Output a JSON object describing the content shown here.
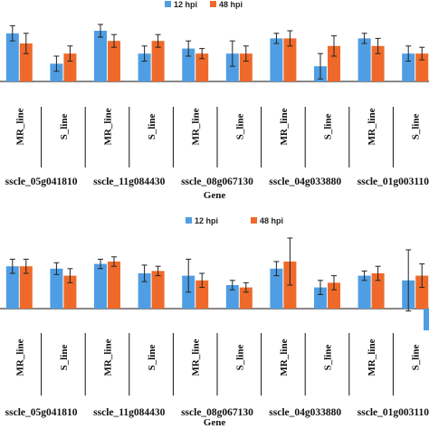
{
  "colors": {
    "s12": "#4f9ee3",
    "s48": "#ef6a2a",
    "axis": "#111111",
    "err": "#222222"
  },
  "chart_data": [
    {
      "type": "bar",
      "xlabel": "Gene",
      "legend": [
        "12 hpi",
        "48 hpi"
      ],
      "genes": [
        "sscle_05g041810",
        "sscle_11g084430",
        "sscle_08g067130",
        "sscle_04g033880",
        "sscle_01g003110"
      ],
      "lines": [
        "MR_line",
        "S_line"
      ],
      "categories": [
        "MR_line",
        "S_line",
        "MR_line",
        "S_line",
        "MR_line",
        "S_line",
        "MR_line",
        "S_line",
        "MR_line",
        "S_line"
      ],
      "series": [
        {
          "name": "12 hpi",
          "values": [
            1.9,
            0.7,
            2.0,
            1.1,
            1.3,
            1.1,
            1.7,
            0.6,
            1.7,
            1.1
          ],
          "errors": [
            0.3,
            0.3,
            0.25,
            0.3,
            0.3,
            0.5,
            0.2,
            0.5,
            0.2,
            0.3
          ]
        },
        {
          "name": "48 hpi",
          "values": [
            1.5,
            1.1,
            1.6,
            1.6,
            1.1,
            1.1,
            1.7,
            1.4,
            1.4,
            1.1
          ],
          "errors": [
            0.4,
            0.3,
            0.25,
            0.25,
            0.2,
            0.3,
            0.3,
            0.4,
            0.3,
            0.25
          ]
        }
      ],
      "ylim": [
        -0.6,
        2.3
      ]
    },
    {
      "type": "bar",
      "xlabel": "Gene",
      "legend": [
        "12 hpi",
        "48 hpi"
      ],
      "genes": [
        "sscle_05g041810",
        "sscle_11g084430",
        "sscle_08g067130",
        "sscle_04g033880",
        "sscle_01g003110"
      ],
      "lines": [
        "MR_line",
        "S_line"
      ],
      "categories": [
        "MR_line",
        "S_line",
        "MR_line",
        "S_line",
        "MR_line",
        "S_line",
        "MR_line",
        "S_line",
        "MR_line",
        "S_line"
      ],
      "series": [
        {
          "name": "12 hpi",
          "values": [
            1.8,
            1.7,
            1.9,
            1.5,
            1.4,
            1.0,
            1.7,
            0.9,
            1.4,
            1.2
          ],
          "errors": [
            0.3,
            0.25,
            0.2,
            0.35,
            0.7,
            0.2,
            0.3,
            0.3,
            0.2,
            1.3
          ]
        },
        {
          "name": "48 hpi",
          "values": [
            1.8,
            1.4,
            2.0,
            1.6,
            1.2,
            0.9,
            2.0,
            1.1,
            1.5,
            1.4
          ],
          "errors": [
            0.3,
            0.3,
            0.2,
            0.2,
            0.3,
            0.2,
            1.0,
            0.3,
            0.3,
            0.5
          ]
        }
      ],
      "ylim": [
        -1.2,
        2.9
      ]
    }
  ]
}
